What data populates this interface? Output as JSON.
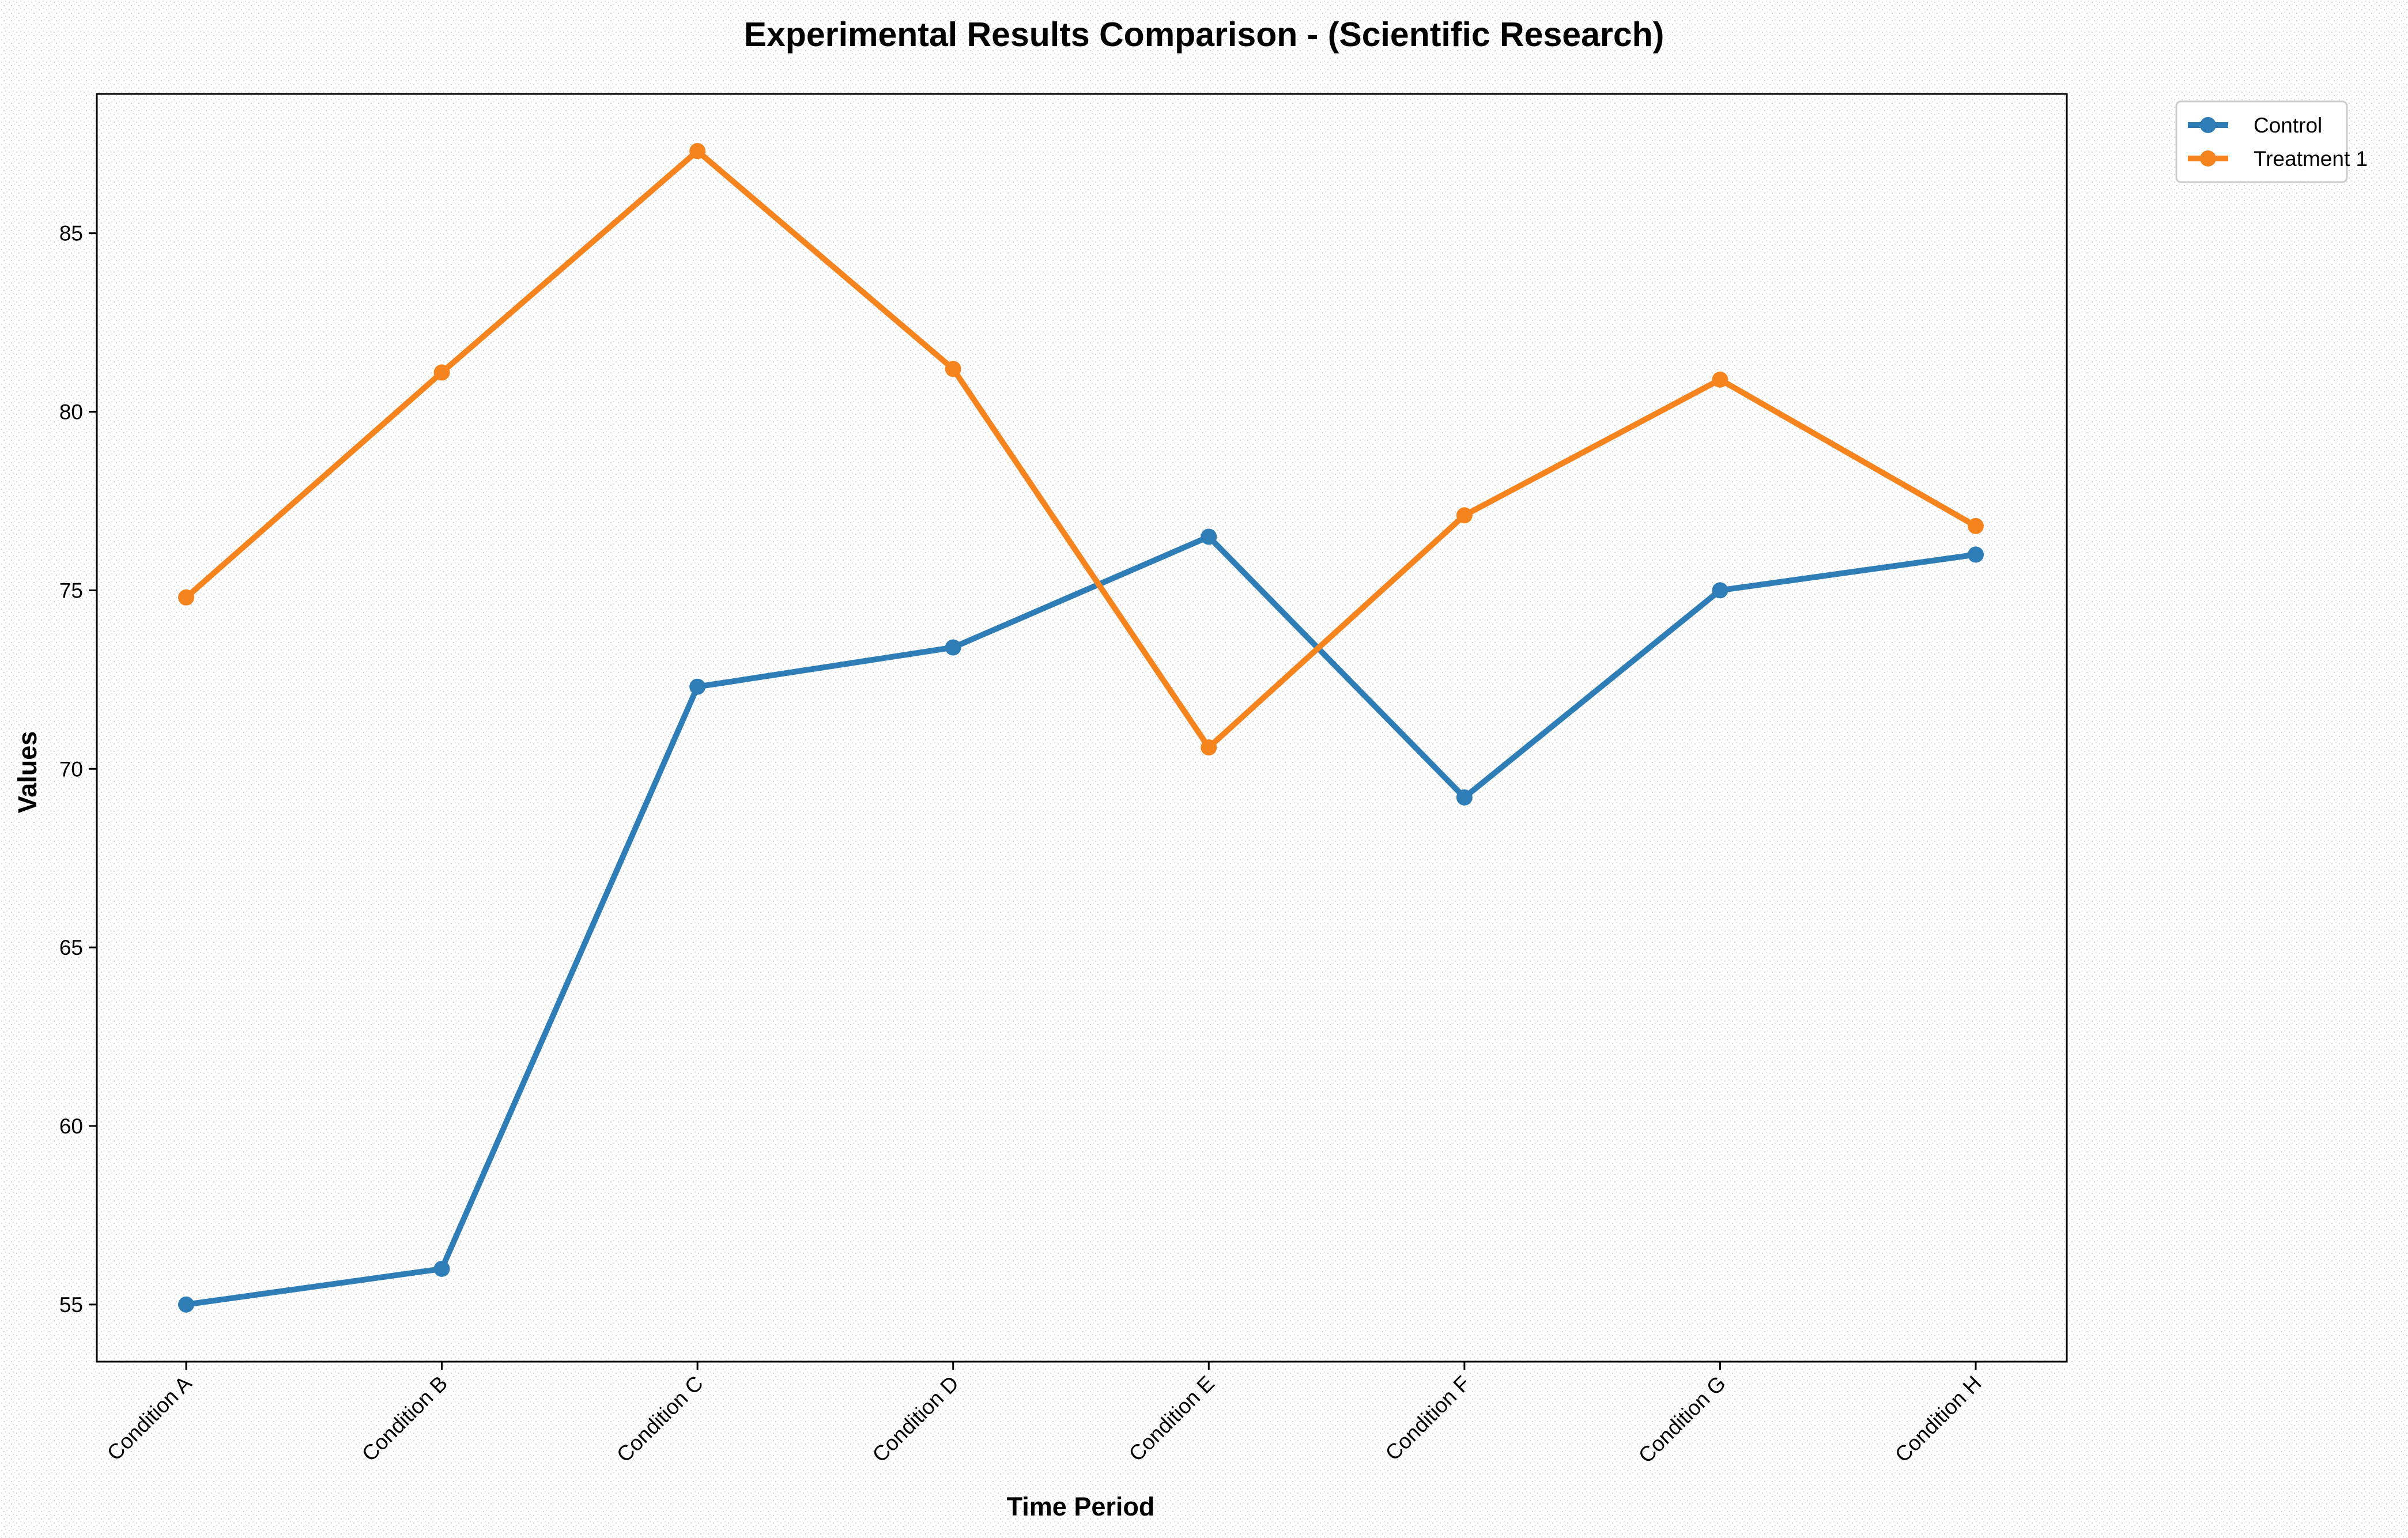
{
  "chart_data": {
    "type": "line",
    "title": "Experimental Results Comparison - (Scientific Research)",
    "xlabel": "Time Period",
    "ylabel": "Values",
    "categories": [
      "Condition A",
      "Condition B",
      "Condition C",
      "Condition D",
      "Condition E",
      "Condition F",
      "Condition G",
      "Condition H"
    ],
    "ylim": [
      53.4,
      88.9
    ],
    "yticks": [
      55,
      60,
      65,
      70,
      75,
      80,
      85
    ],
    "grid": false,
    "legend_position": "outside top-right",
    "series": [
      {
        "name": "Control",
        "color": "#2e7db7",
        "values": [
          55.0,
          56.0,
          72.3,
          73.4,
          76.5,
          69.2,
          75.0,
          76.0
        ]
      },
      {
        "name": "Treatment 1",
        "color": "#f5841f",
        "values": [
          74.8,
          81.1,
          87.3,
          81.2,
          70.6,
          77.1,
          80.9,
          76.8
        ]
      }
    ]
  }
}
